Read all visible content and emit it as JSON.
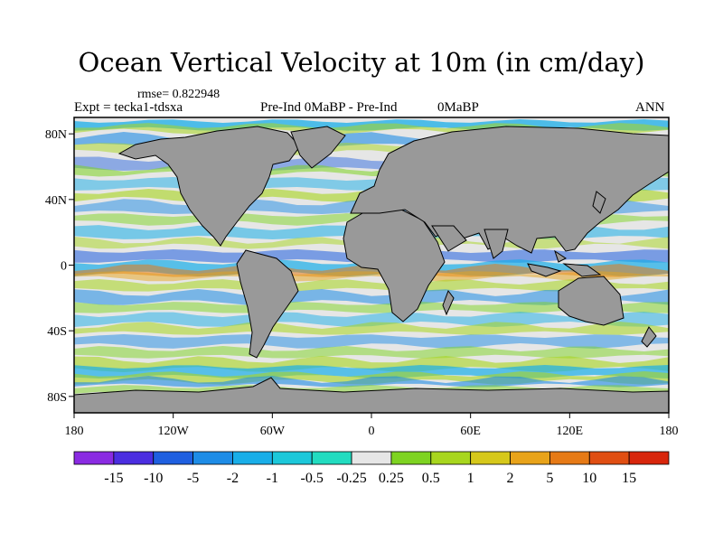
{
  "title": "Ocean Vertical Velocity at 10m (in cm/day)",
  "rmse": "rmse= 0.822948",
  "expt": "Expt = tecka1-tdsxa",
  "center_label": "Pre-Ind 0MaBP - Pre-Ind",
  "center_label_2": "0MaBP",
  "season": "ANN",
  "lat_ticks": [
    "80N",
    "40N",
    "0",
    "40S",
    "80S"
  ],
  "lon_ticks": [
    "180",
    "120W",
    "60W",
    "0",
    "60E",
    "120E",
    "180"
  ],
  "colorbar": {
    "labels": [
      "-15",
      "-10",
      "-5",
      "-2",
      "-1",
      "-0.5",
      "-0.25",
      "0.25",
      "0.5",
      "1",
      "2",
      "5",
      "10",
      "15"
    ],
    "colors": [
      "#8a2be2",
      "#4b2ee0",
      "#1f5fe0",
      "#1e8ce6",
      "#19aee8",
      "#1cc8da",
      "#22dcc0",
      "#e6e6e6",
      "#7ed321",
      "#a8d61e",
      "#d6c81b",
      "#e8a31a",
      "#e67a16",
      "#e04e12",
      "#d8260c"
    ]
  },
  "colors": {
    "land": "#999999",
    "ocean_bg": "#e6e6e6"
  }
}
